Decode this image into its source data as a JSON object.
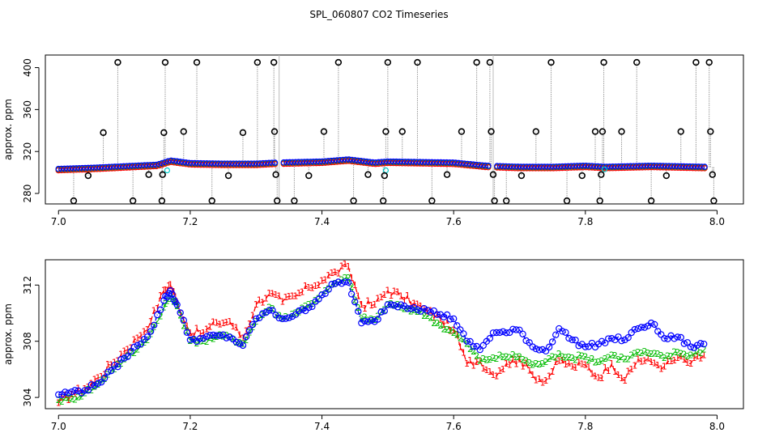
{
  "title": "SPL_060807  CO2 Timeseries",
  "colors": {
    "series1": "#ff0000",
    "series2": "#00bb00",
    "series3": "#0000ff",
    "outlier": "#000000",
    "cyan": "#00cccc",
    "spike": "#999999"
  },
  "chart_data": [
    {
      "type": "scatter",
      "panel": "top",
      "ylabel": "approx. ppm",
      "xlabel": "",
      "xlim": [
        6.98,
        8.04
      ],
      "ylim": [
        270,
        412
      ],
      "xticks": [
        "7.0",
        "7.2",
        "7.4",
        "7.6",
        "7.8",
        "8.0"
      ],
      "yticks": [
        "280",
        "320",
        "360",
        "400"
      ],
      "grid": false,
      "baseline": [
        [
          7.0,
          303
        ],
        [
          7.05,
          304
        ],
        [
          7.1,
          305.5
        ],
        [
          7.15,
          307
        ],
        [
          7.17,
          311
        ],
        [
          7.2,
          308.5
        ],
        [
          7.25,
          308
        ],
        [
          7.3,
          308
        ],
        [
          7.33,
          309
        ],
        [
          7.4,
          310
        ],
        [
          7.44,
          312
        ],
        [
          7.48,
          309
        ],
        [
          7.5,
          310
        ],
        [
          7.6,
          309
        ],
        [
          7.65,
          306
        ],
        [
          7.7,
          305
        ],
        [
          7.75,
          305
        ],
        [
          7.8,
          306
        ],
        [
          7.83,
          305
        ],
        [
          7.9,
          306
        ],
        [
          7.98,
          305
        ]
      ],
      "gaps": [
        7.335,
        7.66
      ],
      "outliers": [
        {
          "x": 7.023,
          "y": 273
        },
        {
          "x": 7.045,
          "y": 297
        },
        {
          "x": 7.068,
          "y": 338
        },
        {
          "x": 7.09,
          "y": 405
        },
        {
          "x": 7.113,
          "y": 273
        },
        {
          "x": 7.137,
          "y": 298
        },
        {
          "x": 7.157,
          "y": 273
        },
        {
          "x": 7.158,
          "y": 298
        },
        {
          "x": 7.16,
          "y": 338
        },
        {
          "x": 7.162,
          "y": 405
        },
        {
          "x": 7.19,
          "y": 339
        },
        {
          "x": 7.21,
          "y": 405
        },
        {
          "x": 7.233,
          "y": 273
        },
        {
          "x": 7.258,
          "y": 297
        },
        {
          "x": 7.28,
          "y": 338
        },
        {
          "x": 7.302,
          "y": 405
        },
        {
          "x": 7.327,
          "y": 405
        },
        {
          "x": 7.328,
          "y": 339
        },
        {
          "x": 7.33,
          "y": 298
        },
        {
          "x": 7.332,
          "y": 273
        },
        {
          "x": 7.358,
          "y": 273
        },
        {
          "x": 7.38,
          "y": 297
        },
        {
          "x": 7.403,
          "y": 339
        },
        {
          "x": 7.425,
          "y": 405
        },
        {
          "x": 7.448,
          "y": 273
        },
        {
          "x": 7.47,
          "y": 298
        },
        {
          "x": 7.493,
          "y": 273
        },
        {
          "x": 7.495,
          "y": 297
        },
        {
          "x": 7.497,
          "y": 339
        },
        {
          "x": 7.5,
          "y": 405
        },
        {
          "x": 7.522,
          "y": 339
        },
        {
          "x": 7.545,
          "y": 405
        },
        {
          "x": 7.567,
          "y": 273
        },
        {
          "x": 7.59,
          "y": 298
        },
        {
          "x": 7.612,
          "y": 339
        },
        {
          "x": 7.635,
          "y": 405
        },
        {
          "x": 7.655,
          "y": 405
        },
        {
          "x": 7.657,
          "y": 339
        },
        {
          "x": 7.66,
          "y": 298
        },
        {
          "x": 7.662,
          "y": 273
        },
        {
          "x": 7.68,
          "y": 273
        },
        {
          "x": 7.703,
          "y": 297
        },
        {
          "x": 7.725,
          "y": 339
        },
        {
          "x": 7.748,
          "y": 405
        },
        {
          "x": 7.772,
          "y": 273
        },
        {
          "x": 7.795,
          "y": 297
        },
        {
          "x": 7.815,
          "y": 339
        },
        {
          "x": 7.822,
          "y": 273
        },
        {
          "x": 7.824,
          "y": 298
        },
        {
          "x": 7.826,
          "y": 339
        },
        {
          "x": 7.828,
          "y": 405
        },
        {
          "x": 7.855,
          "y": 339
        },
        {
          "x": 7.878,
          "y": 405
        },
        {
          "x": 7.9,
          "y": 273
        },
        {
          "x": 7.923,
          "y": 297
        },
        {
          "x": 7.945,
          "y": 339
        },
        {
          "x": 7.968,
          "y": 405
        },
        {
          "x": 7.988,
          "y": 405
        },
        {
          "x": 7.99,
          "y": 339
        },
        {
          "x": 7.993,
          "y": 298
        },
        {
          "x": 7.995,
          "y": 273
        }
      ]
    },
    {
      "type": "line",
      "panel": "bottom",
      "ylabel": "approx. ppm",
      "xlabel": "",
      "xlim": [
        6.98,
        8.04
      ],
      "ylim": [
        303.2,
        313.8
      ],
      "xticks": [
        "7.0",
        "7.2",
        "7.4",
        "7.6",
        "7.8",
        "8.0"
      ],
      "yticks": [
        "304",
        "308",
        "312"
      ],
      "grid": false,
      "series": [
        {
          "name": "1",
          "marker": "1",
          "color": "#ff0000",
          "x": [
            7.0,
            7.02,
            7.04,
            7.06,
            7.08,
            7.1,
            7.12,
            7.14,
            7.16,
            7.17,
            7.18,
            7.2,
            7.22,
            7.24,
            7.26,
            7.28,
            7.3,
            7.32,
            7.34,
            7.36,
            7.38,
            7.4,
            7.42,
            7.44,
            7.46,
            7.48,
            7.5,
            7.52,
            7.54,
            7.56,
            7.58,
            7.6,
            7.62,
            7.64,
            7.66,
            7.68,
            7.7,
            7.72,
            7.74,
            7.76,
            7.78,
            7.8,
            7.82,
            7.84,
            7.86,
            7.88,
            7.9,
            7.92,
            7.94,
            7.96,
            7.98
          ],
          "values": [
            303.6,
            304.2,
            304.6,
            305.4,
            306.3,
            307.3,
            308.2,
            309.4,
            311.6,
            312.0,
            310.8,
            308.6,
            308.6,
            309.3,
            309.4,
            308.2,
            310.6,
            311.4,
            310.8,
            311.2,
            311.8,
            312.3,
            312.9,
            313.3,
            310.6,
            310.6,
            311.6,
            311.2,
            310.7,
            310.1,
            309.6,
            308.8,
            306.4,
            306.6,
            305.6,
            306.4,
            306.7,
            305.6,
            305.2,
            306.6,
            306.2,
            306.3,
            305.4,
            306.4,
            305.2,
            306.7,
            306.5,
            306.2,
            306.8,
            306.4,
            307.0
          ]
        },
        {
          "name": "2",
          "marker": "2",
          "color": "#00bb00",
          "x": [
            7.0,
            7.02,
            7.04,
            7.06,
            7.08,
            7.1,
            7.12,
            7.14,
            7.16,
            7.17,
            7.18,
            7.2,
            7.22,
            7.24,
            7.26,
            7.28,
            7.3,
            7.32,
            7.34,
            7.36,
            7.38,
            7.4,
            7.42,
            7.44,
            7.46,
            7.48,
            7.5,
            7.52,
            7.54,
            7.56,
            7.58,
            7.6,
            7.62,
            7.64,
            7.66,
            7.68,
            7.7,
            7.72,
            7.74,
            7.76,
            7.78,
            7.8,
            7.82,
            7.84,
            7.86,
            7.88,
            7.9,
            7.92,
            7.94,
            7.96,
            7.98
          ],
          "values": [
            303.8,
            303.9,
            304.3,
            304.9,
            305.9,
            306.7,
            307.4,
            308.5,
            310.4,
            311.2,
            310.5,
            308.0,
            308.0,
            308.3,
            308.3,
            307.8,
            309.4,
            310.4,
            309.6,
            310.0,
            310.6,
            311.3,
            312.1,
            312.5,
            309.6,
            309.5,
            310.6,
            310.4,
            310.2,
            309.8,
            309.1,
            308.6,
            307.8,
            306.6,
            306.8,
            306.9,
            306.9,
            306.3,
            306.5,
            307.1,
            306.8,
            306.9,
            306.5,
            307.0,
            306.7,
            307.2,
            307.1,
            306.8,
            307.2,
            307.0,
            307.4
          ]
        },
        {
          "name": "3",
          "marker": "O",
          "color": "#0000ff",
          "x": [
            7.0,
            7.02,
            7.04,
            7.06,
            7.08,
            7.1,
            7.12,
            7.14,
            7.16,
            7.17,
            7.18,
            7.2,
            7.22,
            7.24,
            7.26,
            7.28,
            7.3,
            7.32,
            7.34,
            7.36,
            7.38,
            7.4,
            7.42,
            7.44,
            7.46,
            7.48,
            7.5,
            7.52,
            7.54,
            7.56,
            7.58,
            7.6,
            7.62,
            7.64,
            7.66,
            7.68,
            7.7,
            7.72,
            7.74,
            7.76,
            7.78,
            7.8,
            7.82,
            7.84,
            7.86,
            7.88,
            7.9,
            7.92,
            7.94,
            7.96,
            7.98
          ],
          "values": [
            304.2,
            304.4,
            304.5,
            305.0,
            305.9,
            306.8,
            307.7,
            308.7,
            310.9,
            311.6,
            310.6,
            308.1,
            308.2,
            308.4,
            308.3,
            307.7,
            309.6,
            310.2,
            309.6,
            309.9,
            310.4,
            311.3,
            312.1,
            312.2,
            309.3,
            309.4,
            310.6,
            310.6,
            310.4,
            310.2,
            309.9,
            309.6,
            308.0,
            307.4,
            308.6,
            308.6,
            308.8,
            307.6,
            307.3,
            308.9,
            308.1,
            307.6,
            307.8,
            308.2,
            308.1,
            308.9,
            309.3,
            308.2,
            308.3,
            307.6,
            307.8
          ]
        }
      ]
    }
  ]
}
